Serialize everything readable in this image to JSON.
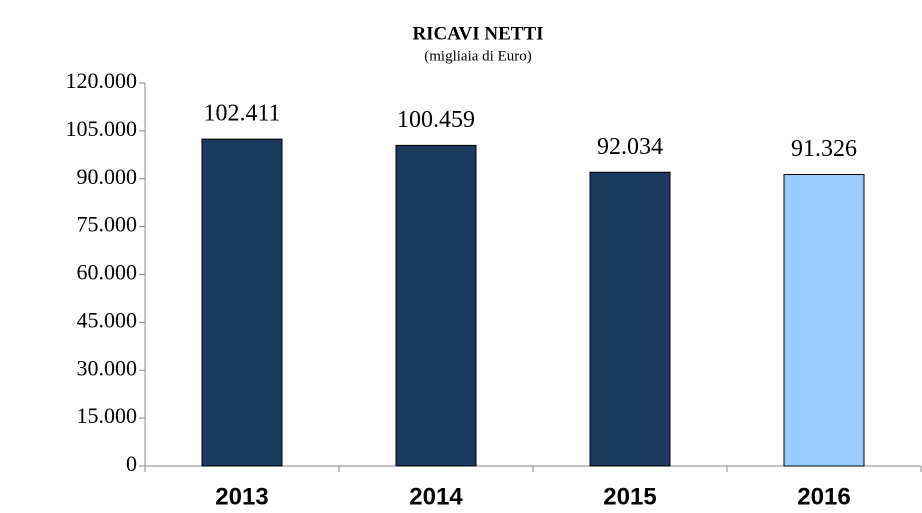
{
  "chart_data": {
    "type": "bar",
    "title": "RICAVI NETTI",
    "subtitle": "(migliaia di Euro)",
    "categories": [
      "2013",
      "2014",
      "2015",
      "2016"
    ],
    "values": [
      102411,
      100459,
      92034,
      91326
    ],
    "value_labels": [
      "102.411",
      "100.459",
      "92.034",
      "91.326"
    ],
    "colors": [
      "#1b3a5e",
      "#1b3a5e",
      "#1b3a5e",
      "#99ccff"
    ],
    "ylim": [
      0,
      120000
    ],
    "yticks": [
      0,
      {
        "value": 15000,
        "label": "15.000"
      },
      {
        "value": 30000,
        "label": "30.000"
      },
      {
        "value": 45000,
        "label": "45.000"
      },
      {
        "value": 60000,
        "label": "60.000"
      },
      {
        "value": 75000,
        "label": "75.000"
      },
      {
        "value": 90000,
        "label": "90.000"
      },
      {
        "value": 105000,
        "label": "105.000"
      },
      {
        "value": 120000,
        "label": "120.000"
      }
    ],
    "grid": false
  }
}
